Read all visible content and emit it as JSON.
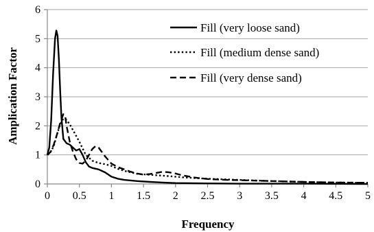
{
  "chart_data": {
    "type": "line",
    "title": "",
    "xlabel": "Frequency",
    "ylabel": "Amplication Factor",
    "xlim": [
      0,
      5
    ],
    "ylim": [
      0,
      6
    ],
    "xticks": [
      0,
      0.5,
      1,
      1.5,
      2,
      2.5,
      3,
      3.5,
      4,
      4.5,
      5
    ],
    "xtick_labels": [
      "0",
      "0.5",
      "1",
      "1.5",
      "2",
      "2.5",
      "3",
      "3.5",
      "4",
      "4.5",
      "5"
    ],
    "yticks": [
      0,
      1,
      2,
      3,
      4,
      5,
      6
    ],
    "ytick_labels": [
      "0",
      "1",
      "2",
      "3",
      "4",
      "5",
      "6"
    ],
    "grid": "horizontal",
    "legend_position": "top-right",
    "series": [
      {
        "name": "Fill (very loose sand)",
        "style": "solid",
        "points": [
          [
            0,
            1.0
          ],
          [
            0.03,
            1.25
          ],
          [
            0.06,
            2.2
          ],
          [
            0.09,
            3.8
          ],
          [
            0.12,
            5.0
          ],
          [
            0.14,
            5.28
          ],
          [
            0.16,
            5.1
          ],
          [
            0.18,
            4.3
          ],
          [
            0.2,
            3.2
          ],
          [
            0.22,
            2.3
          ],
          [
            0.25,
            1.55
          ],
          [
            0.3,
            1.4
          ],
          [
            0.35,
            1.35
          ],
          [
            0.4,
            1.25
          ],
          [
            0.45,
            1.15
          ],
          [
            0.5,
            1.2
          ],
          [
            0.55,
            1.0
          ],
          [
            0.6,
            0.75
          ],
          [
            0.65,
            0.6
          ],
          [
            0.7,
            0.55
          ],
          [
            0.8,
            0.5
          ],
          [
            0.9,
            0.4
          ],
          [
            1.0,
            0.25
          ],
          [
            1.1,
            0.18
          ],
          [
            1.2,
            0.14
          ],
          [
            1.4,
            0.1
          ],
          [
            1.6,
            0.07
          ],
          [
            1.8,
            0.05
          ],
          [
            2.0,
            0.03
          ],
          [
            2.5,
            0.02
          ],
          [
            3.0,
            0.01
          ],
          [
            4.0,
            0.01
          ],
          [
            5.0,
            0.0
          ]
        ]
      },
      {
        "name": "Fill (medium dense sand)",
        "style": "dotted",
        "points": [
          [
            0,
            1.0
          ],
          [
            0.05,
            1.1
          ],
          [
            0.1,
            1.3
          ],
          [
            0.15,
            1.7
          ],
          [
            0.2,
            2.05
          ],
          [
            0.25,
            2.25
          ],
          [
            0.3,
            2.2
          ],
          [
            0.35,
            2.05
          ],
          [
            0.4,
            1.85
          ],
          [
            0.5,
            1.45
          ],
          [
            0.6,
            1.0
          ],
          [
            0.7,
            0.8
          ],
          [
            0.8,
            0.72
          ],
          [
            0.9,
            0.68
          ],
          [
            1.0,
            0.62
          ],
          [
            1.1,
            0.52
          ],
          [
            1.2,
            0.45
          ],
          [
            1.3,
            0.4
          ],
          [
            1.4,
            0.35
          ],
          [
            1.5,
            0.33
          ],
          [
            1.7,
            0.3
          ],
          [
            1.9,
            0.27
          ],
          [
            2.1,
            0.23
          ],
          [
            2.5,
            0.18
          ],
          [
            3.0,
            0.14
          ],
          [
            3.5,
            0.1
          ],
          [
            4.0,
            0.07
          ],
          [
            4.5,
            0.05
          ],
          [
            5.0,
            0.04
          ]
        ]
      },
      {
        "name": "Fill (very dense sand)",
        "style": "dashed",
        "points": [
          [
            0,
            1.0
          ],
          [
            0.05,
            1.1
          ],
          [
            0.1,
            1.35
          ],
          [
            0.15,
            1.7
          ],
          [
            0.2,
            2.1
          ],
          [
            0.25,
            2.4
          ],
          [
            0.28,
            2.3
          ],
          [
            0.3,
            2.0
          ],
          [
            0.35,
            1.45
          ],
          [
            0.4,
            1.1
          ],
          [
            0.45,
            0.85
          ],
          [
            0.5,
            0.72
          ],
          [
            0.55,
            0.7
          ],
          [
            0.6,
            0.8
          ],
          [
            0.65,
            1.0
          ],
          [
            0.7,
            1.2
          ],
          [
            0.75,
            1.3
          ],
          [
            0.8,
            1.25
          ],
          [
            0.85,
            1.1
          ],
          [
            0.9,
            0.95
          ],
          [
            1.0,
            0.7
          ],
          [
            1.1,
            0.58
          ],
          [
            1.2,
            0.5
          ],
          [
            1.3,
            0.42
          ],
          [
            1.4,
            0.36
          ],
          [
            1.5,
            0.32
          ],
          [
            1.6,
            0.34
          ],
          [
            1.7,
            0.38
          ],
          [
            1.8,
            0.42
          ],
          [
            1.9,
            0.4
          ],
          [
            2.0,
            0.36
          ],
          [
            2.1,
            0.3
          ],
          [
            2.3,
            0.22
          ],
          [
            2.5,
            0.17
          ],
          [
            2.8,
            0.14
          ],
          [
            3.0,
            0.13
          ],
          [
            3.5,
            0.1
          ],
          [
            4.0,
            0.07
          ],
          [
            4.5,
            0.05
          ],
          [
            5.0,
            0.04
          ]
        ]
      }
    ]
  }
}
